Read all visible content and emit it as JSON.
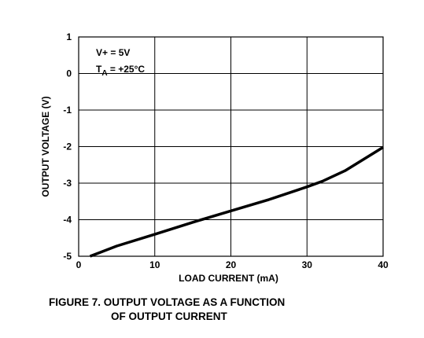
{
  "chart_data": {
    "type": "line",
    "xlabel": "LOAD CURRENT (mA)",
    "ylabel": "OUTPUT VOLTAGE (V)",
    "xlim": [
      0,
      40
    ],
    "ylim": [
      -5,
      1
    ],
    "x_ticks": [
      0,
      10,
      20,
      30,
      40
    ],
    "y_ticks": [
      1,
      0,
      -1,
      -2,
      -3,
      -4,
      -5
    ],
    "x_tick_labels": [
      "0",
      "10",
      "20",
      "30",
      "40"
    ],
    "y_tick_labels": [
      "1",
      "0",
      "-1",
      "-2",
      "-3",
      "-4",
      "-5"
    ],
    "grid": true,
    "annotations": {
      "supply": "V+ = 5V",
      "temp_main": "T",
      "temp_sub": "A",
      "temp_rest": " = +25°C"
    },
    "series": [
      {
        "x": [
          1.5,
          5,
          10,
          15,
          20,
          25,
          30,
          32,
          35,
          40
        ],
        "y": [
          -5.0,
          -4.72,
          -4.4,
          -4.07,
          -3.76,
          -3.45,
          -3.1,
          -2.95,
          -2.66,
          -2.02
        ]
      }
    ],
    "line_color": "#000000"
  },
  "caption": {
    "line1": "FIGURE 7.  OUTPUT VOLTAGE AS A FUNCTION",
    "line2": "OF OUTPUT CURRENT"
  }
}
